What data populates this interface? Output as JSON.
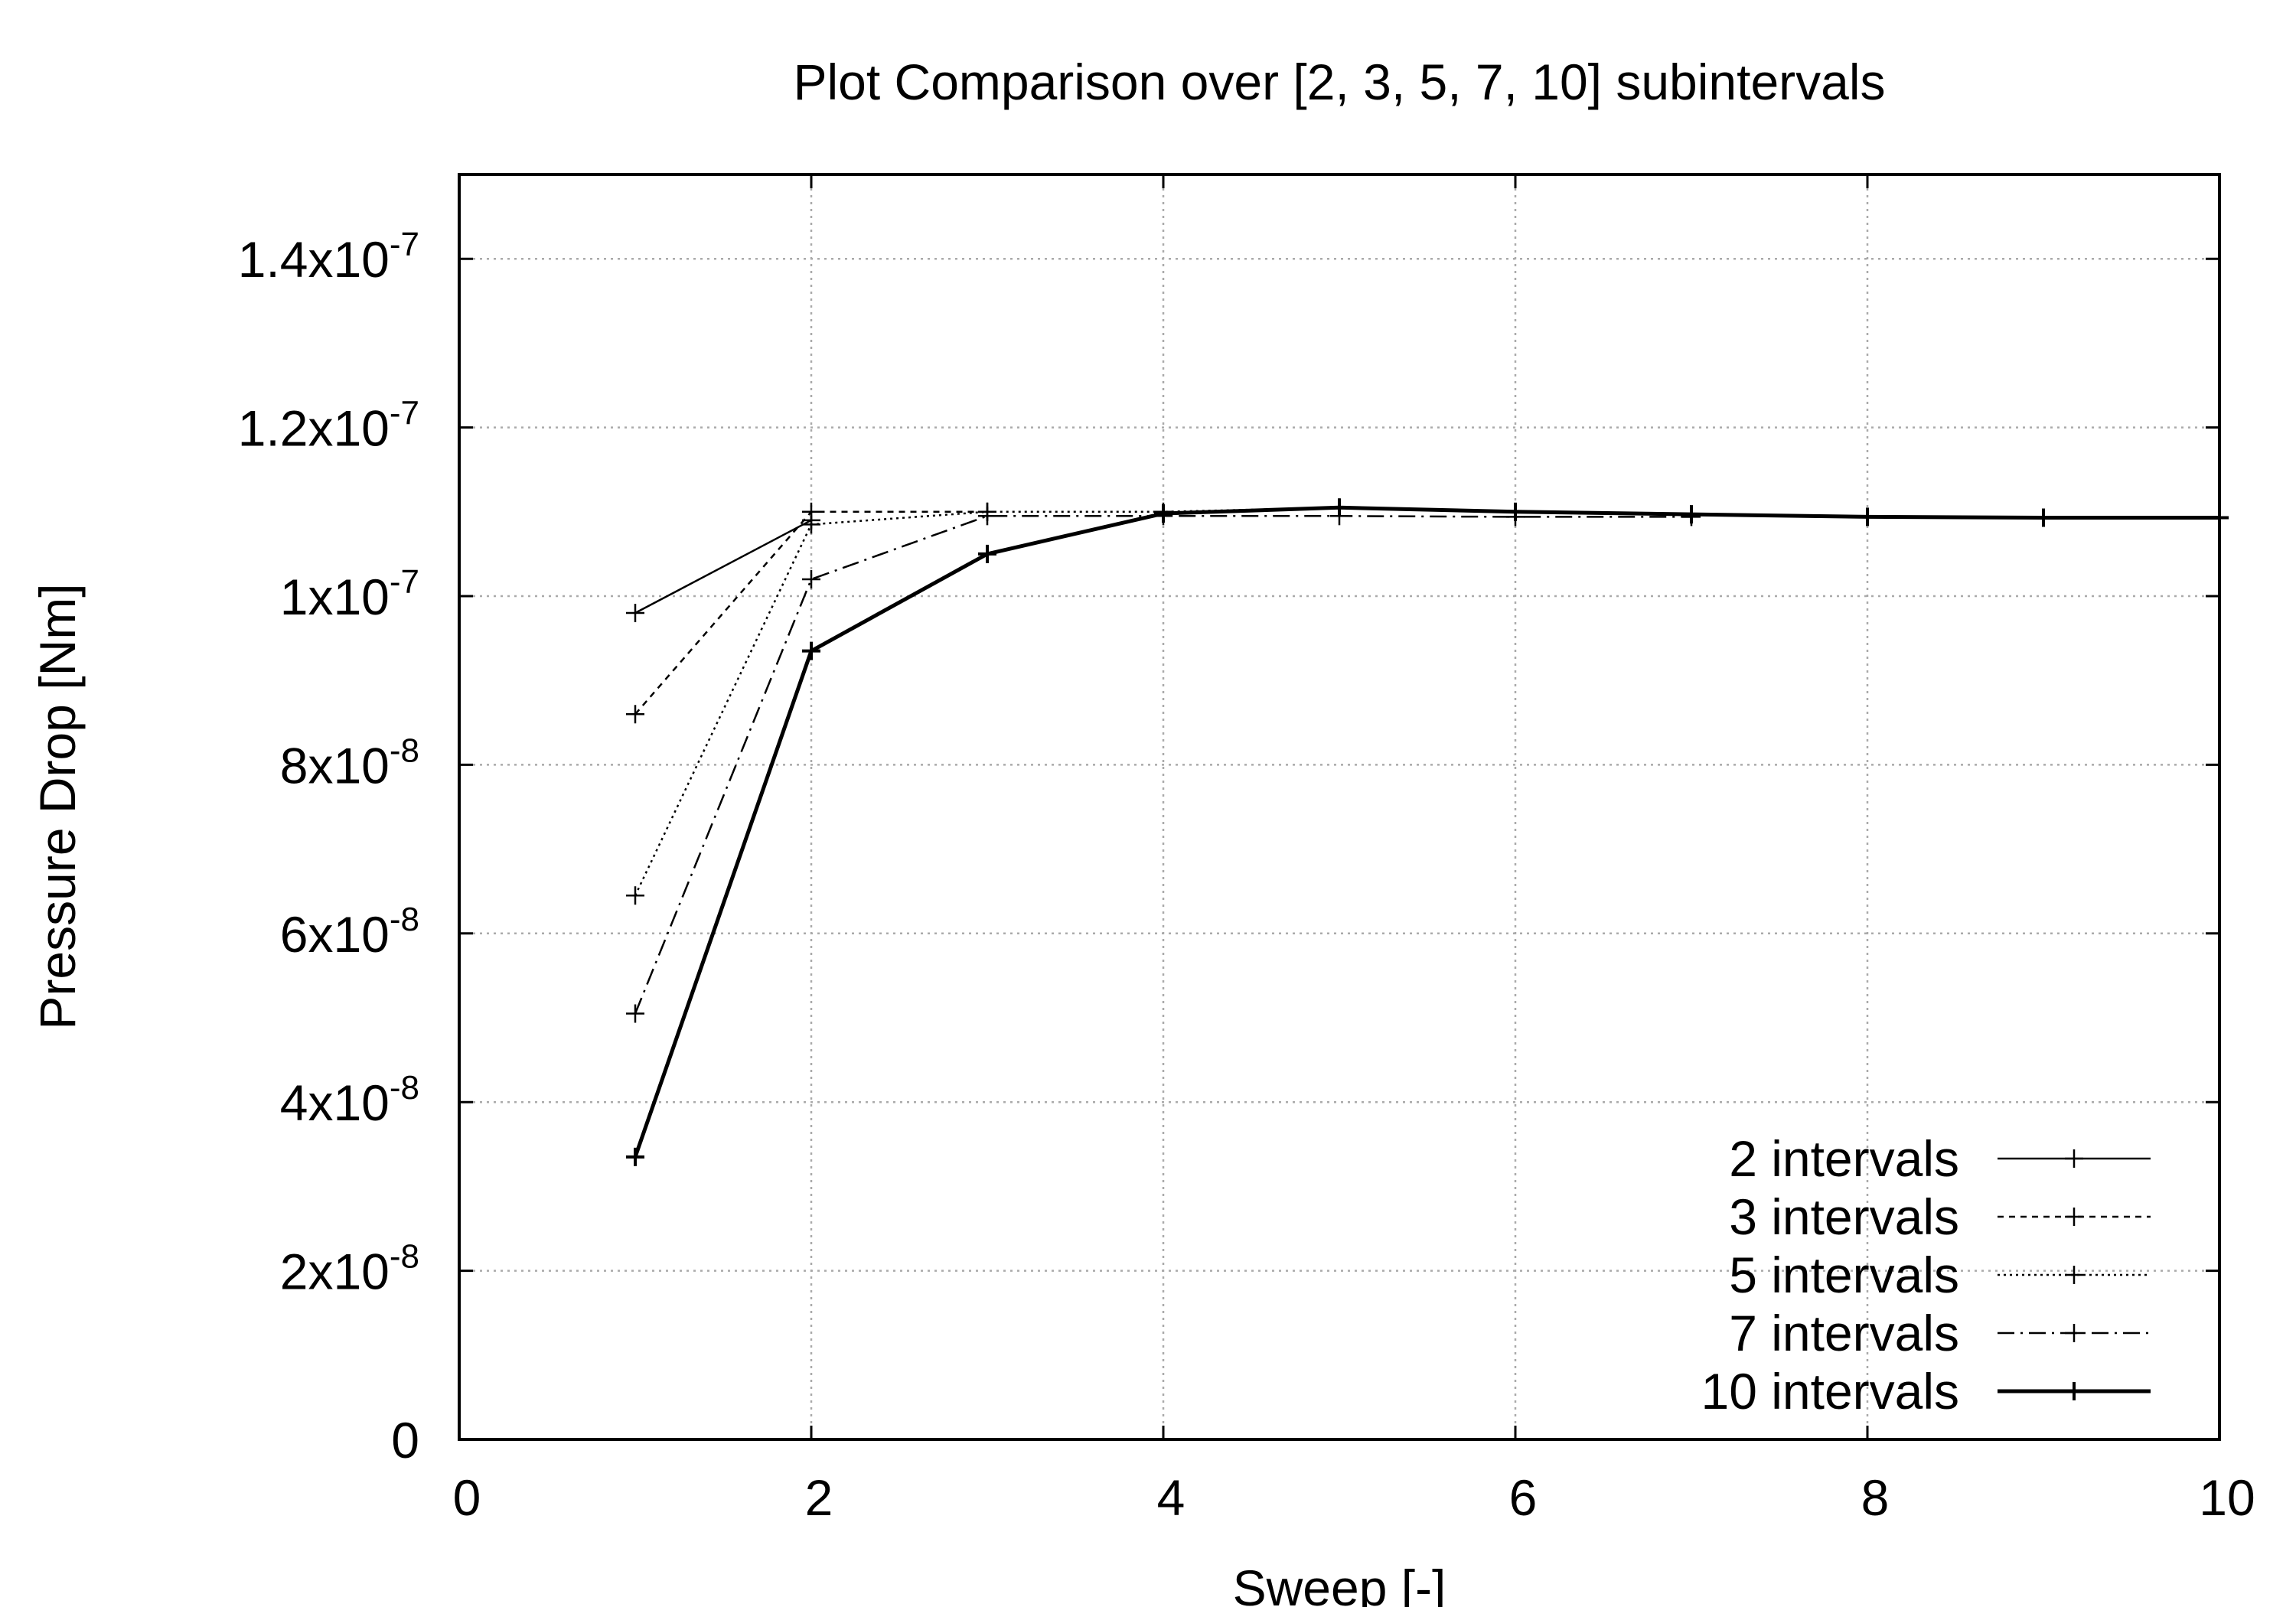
{
  "chart_data": {
    "type": "line",
    "title": "Plot Comparison over [2, 3, 5, 7, 10] subintervals",
    "xlabel": "Sweep [-]",
    "ylabel": "Pressure Drop [Nm]",
    "xlim": [
      0,
      10
    ],
    "ylim": [
      0,
      1.5e-07
    ],
    "grid": true,
    "legend_position": "bottom-right",
    "x_ticks": [
      {
        "value": 0,
        "label": "0"
      },
      {
        "value": 2,
        "label": "2"
      },
      {
        "value": 4,
        "label": "4"
      },
      {
        "value": 6,
        "label": "6"
      },
      {
        "value": 8,
        "label": "8"
      },
      {
        "value": 10,
        "label": "10"
      }
    ],
    "y_ticks": [
      {
        "value": 0,
        "mantissa": "0",
        "exponent": ""
      },
      {
        "value": 2e-08,
        "mantissa": "2x10",
        "exponent": "-8"
      },
      {
        "value": 4e-08,
        "mantissa": "4x10",
        "exponent": "-8"
      },
      {
        "value": 6e-08,
        "mantissa": "6x10",
        "exponent": "-8"
      },
      {
        "value": 8e-08,
        "mantissa": "8x10",
        "exponent": "-8"
      },
      {
        "value": 1e-07,
        "mantissa": "1x10",
        "exponent": "-7"
      },
      {
        "value": 1.2e-07,
        "mantissa": "1.2x10",
        "exponent": "-7"
      },
      {
        "value": 1.4e-07,
        "mantissa": "1.4x10",
        "exponent": "-7"
      }
    ],
    "series": [
      {
        "name": "2 intervals",
        "dash": "",
        "width": 2.5,
        "x": [
          1,
          2
        ],
        "y": [
          9.8e-08,
          1.09e-07
        ]
      },
      {
        "name": "3 intervals",
        "dash": "8 7",
        "width": 2.5,
        "x": [
          1,
          2,
          3
        ],
        "y": [
          8.6e-08,
          1.1e-07,
          1.1e-07
        ]
      },
      {
        "name": "5 intervals",
        "dash": "3 5",
        "width": 2.5,
        "x": [
          1,
          2,
          3,
          4,
          5
        ],
        "y": [
          6.45e-08,
          1.085e-07,
          1.1e-07,
          1.1e-07,
          1.105e-07
        ]
      },
      {
        "name": "7 intervals",
        "dash": "22 8 3 8",
        "width": 2.5,
        "x": [
          1,
          2,
          3,
          4,
          5,
          6,
          7
        ],
        "y": [
          5.05e-08,
          1.02e-07,
          1.095e-07,
          1.095e-07,
          1.095e-07,
          1.094e-07,
          1.094e-07
        ]
      },
      {
        "name": "10 intervals",
        "dash": "",
        "width": 5,
        "x": [
          1,
          2,
          3,
          4,
          5,
          6,
          7,
          8,
          9,
          10
        ],
        "y": [
          3.35e-08,
          9.35e-08,
          1.05e-07,
          1.098e-07,
          1.105e-07,
          1.1e-07,
          1.097e-07,
          1.094e-07,
          1.093e-07,
          1.093e-07
        ]
      }
    ]
  }
}
